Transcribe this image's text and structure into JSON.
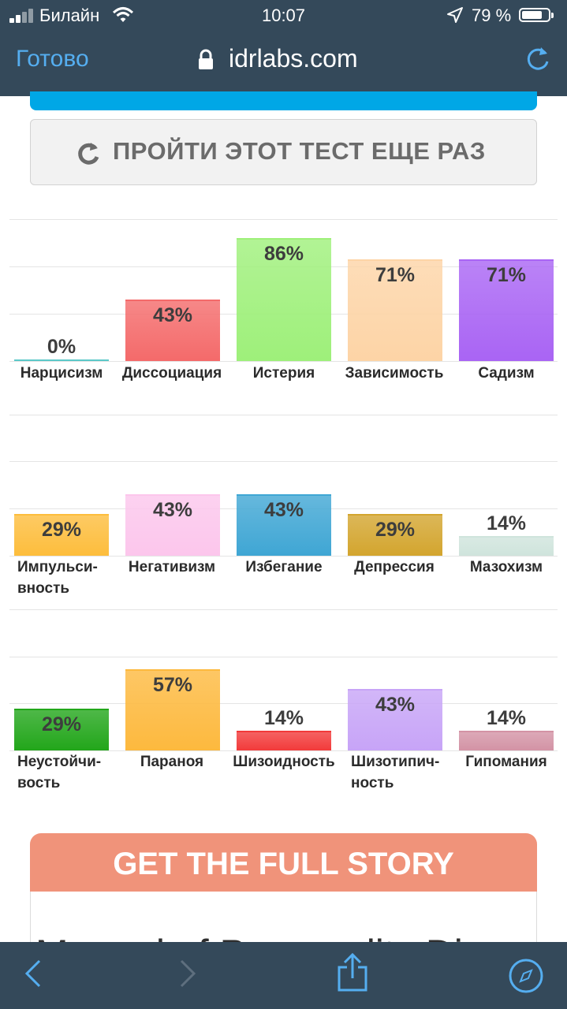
{
  "status_bar": {
    "carrier": "Билайн",
    "time": "10:07",
    "battery_percent": "79 %",
    "battery_level": 0.79
  },
  "browser": {
    "done_label": "Готово",
    "url": "idrlabs.com",
    "reload_icon": "reload-icon",
    "lock_icon": "lock-icon"
  },
  "retake": {
    "label": "ПРОЙТИ ЭТОТ ТЕСТ ЕЩЕ РАЗ",
    "icon": "refresh-icon"
  },
  "chart_data": [
    {
      "type": "bar",
      "categories": [
        "Нарцисизм",
        "Диссоциация",
        "Истерия",
        "Зависимость",
        "Садизм"
      ],
      "values": [
        0,
        43,
        86,
        71,
        71
      ],
      "value_labels": [
        "0%",
        "43%",
        "86%",
        "71%",
        "71%"
      ],
      "colors": [
        "#5bc8c8",
        "#f46a6a",
        "#9ef07a",
        "#fdd4a6",
        "#a964f4"
      ],
      "ylim": [
        0,
        100
      ],
      "grid": true
    },
    {
      "type": "bar",
      "categories": [
        "Импульси-\nвность",
        "Негативизм",
        "Избегание",
        "Депрессия",
        "Мазохизм"
      ],
      "values": [
        29,
        43,
        43,
        29,
        14
      ],
      "value_labels": [
        "29%",
        "43%",
        "43%",
        "29%",
        "14%"
      ],
      "colors": [
        "#fdbd3c",
        "#fcc6ec",
        "#3fa6d4",
        "#d3a52e",
        "#cfe4dc"
      ],
      "ylim": [
        0,
        100
      ],
      "grid": true
    },
    {
      "type": "bar",
      "categories": [
        "Неустойчи-\nвость",
        "Параноя",
        "Шизоидность",
        "Шизотипич-\nность",
        "Гипомания"
      ],
      "values": [
        29,
        57,
        14,
        43,
        14
      ],
      "value_labels": [
        "29%",
        "57%",
        "14%",
        "43%",
        "14%"
      ],
      "colors": [
        "#22a61a",
        "#fdb93e",
        "#f23a3a",
        "#c7a4f7",
        "#d393a5"
      ],
      "ylim": [
        0,
        100
      ],
      "grid": true
    }
  ],
  "promo": {
    "title": "GET THE FULL STORY",
    "subtitle": "Manual of Personality Dis"
  },
  "toolbar": {
    "icons": [
      "back-icon",
      "forward-icon",
      "share-icon",
      "compass-icon"
    ]
  }
}
